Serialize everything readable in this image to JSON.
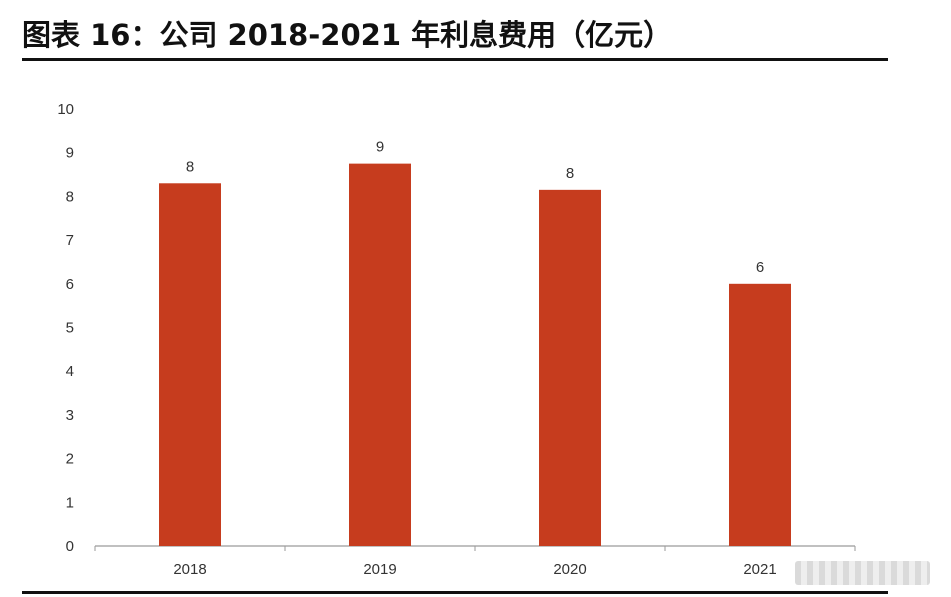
{
  "title": "图表 16：公司 2018-2021 年利息费用（亿元）",
  "colors": {
    "bar": "#C63C1E",
    "axis": "#9a9a9a",
    "text": "#333333"
  },
  "chart_data": {
    "type": "bar",
    "title": "图表 16：公司 2018-2021 年利息费用（亿元）",
    "categories": [
      "2018",
      "2019",
      "2020",
      "2021"
    ],
    "values": [
      8.3,
      8.75,
      8.15,
      6.0
    ],
    "data_labels": [
      "8",
      "9",
      "8",
      "6"
    ],
    "y_ticks": [
      "0",
      "1",
      "2",
      "3",
      "4",
      "5",
      "6",
      "7",
      "8",
      "9",
      "10"
    ],
    "ylim": [
      0,
      10
    ],
    "xlabel": "",
    "ylabel": "",
    "grid": false,
    "legend": "none"
  }
}
